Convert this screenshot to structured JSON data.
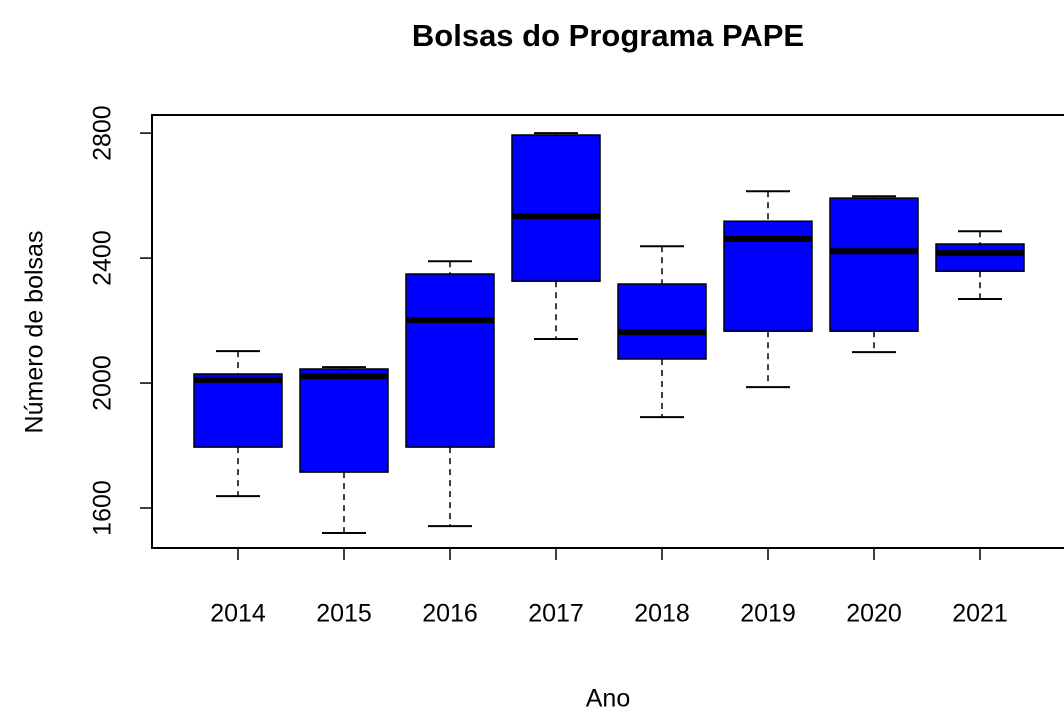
{
  "chart_data": {
    "type": "boxplot",
    "title": "Bolsas do Programa PAPE",
    "x_label": "Ano",
    "y_label": "Número de bolsas",
    "categories": [
      "2014",
      "2015",
      "2016",
      "2017",
      "2018",
      "2019",
      "2020",
      "2021"
    ],
    "min": [
      1638,
      1520,
      1542,
      2141,
      1891,
      1987,
      2099,
      2269
    ],
    "q1": [
      1795,
      1715,
      1795,
      2326,
      2077,
      2166,
      2166,
      2358
    ],
    "median": [
      2010,
      2022,
      2202,
      2534,
      2163,
      2461,
      2422,
      2416
    ],
    "q3": [
      2029,
      2045,
      2349,
      2794,
      2317,
      2518,
      2592,
      2445
    ],
    "max": [
      2102,
      2051,
      2390,
      2800,
      2438,
      2614,
      2598,
      2486
    ],
    "color": "#0000ff",
    "ylim": [
      1472,
      2858
    ],
    "yticks": [
      1600,
      2000,
      2400,
      2800
    ]
  }
}
